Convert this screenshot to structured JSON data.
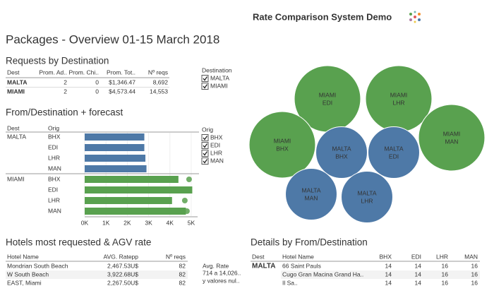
{
  "header": {
    "app_title": "Rate Comparison System Demo",
    "title": "Packages - Overview 01-15 March 2018"
  },
  "requests": {
    "title": "Requests by Destination",
    "columns": [
      "Dest",
      "Prom. Ad..",
      "Prom. Chi..",
      "Prom. Tot..",
      "Nº reqs"
    ],
    "rows": [
      [
        "MALTA",
        "2",
        "0",
        "$1,346.47",
        "8,692"
      ],
      [
        "MIAMI",
        "2",
        "0",
        "$4,573.44",
        "14,553"
      ]
    ]
  },
  "destination_filter": {
    "title": "Destination",
    "options": [
      "MALTA",
      "MIAMI"
    ]
  },
  "forecast": {
    "type": "bar",
    "title": "From/Destination + forecast",
    "columns": [
      "Dest",
      "Orig"
    ],
    "groups": [
      {
        "name": "MALTA",
        "color": "#4e79a7",
        "categories": [
          "BHX",
          "EDI",
          "LHR",
          "MAN"
        ],
        "values": [
          2800,
          2800,
          2850,
          2900
        ],
        "forecast": [
          null,
          null,
          null,
          null
        ]
      },
      {
        "name": "MIAMI",
        "color": "#59a14f",
        "categories": [
          "BHX",
          "EDI",
          "LHR",
          "MAN"
        ],
        "values": [
          4400,
          5050,
          4100,
          4750
        ],
        "forecast": [
          4900,
          null,
          4700,
          4800
        ]
      }
    ],
    "xlim": [
      0,
      5300
    ],
    "xticks": [
      {
        "value": 0,
        "label": "0K"
      },
      {
        "value": 1000,
        "label": "1K"
      },
      {
        "value": 2000,
        "label": "2K"
      },
      {
        "value": 3000,
        "label": "3K"
      },
      {
        "value": 4000,
        "label": "4K"
      },
      {
        "value": 5000,
        "label": "5K"
      }
    ]
  },
  "orig_filter": {
    "title": "Orig",
    "options": [
      "BHX",
      "EDI",
      "LHR",
      "MAN"
    ]
  },
  "bubbles": {
    "type": "bubble",
    "items": [
      {
        "dest": "MIAMI",
        "orig": "EDI",
        "size": 3600,
        "color": "#59a14f"
      },
      {
        "dest": "MIAMI",
        "orig": "LHR",
        "size": 3600,
        "color": "#59a14f"
      },
      {
        "dest": "MIAMI",
        "orig": "BHX",
        "size": 3600,
        "color": "#59a14f"
      },
      {
        "dest": "MIAMI",
        "orig": "MAN",
        "size": 3600,
        "color": "#59a14f"
      },
      {
        "dest": "MALTA",
        "orig": "BHX",
        "size": 2170,
        "color": "#4e79a7"
      },
      {
        "dest": "MALTA",
        "orig": "EDI",
        "size": 2170,
        "color": "#4e79a7"
      },
      {
        "dest": "MALTA",
        "orig": "MAN",
        "size": 2170,
        "color": "#4e79a7"
      },
      {
        "dest": "MALTA",
        "orig": "LHR",
        "size": 2170,
        "color": "#4e79a7"
      }
    ]
  },
  "hotels": {
    "title": "Hotels most requested & AGV rate",
    "columns": [
      "Hotel Name",
      "AVG. Ratepp",
      "Nº reqs"
    ],
    "rows": [
      [
        "Mondrian South Beach",
        "2,467.53U$",
        "82"
      ],
      [
        "W South Beach",
        "3,922.68U$",
        "82"
      ],
      [
        "EAST, Miami",
        "2,267.50U$",
        "82"
      ]
    ]
  },
  "avg_rate_legend": {
    "title": "Avg. Rate",
    "lines": [
      "714 a 14,026..",
      "y valores nul.."
    ]
  },
  "details": {
    "title": "Details by From/Destination",
    "columns": [
      "Dest",
      "Hotel Name",
      "BHX",
      "EDI",
      "LHR",
      "MAN"
    ],
    "dest": "MALTA",
    "rows": [
      [
        "66 Saint Pauls",
        "14",
        "14",
        "16",
        "16"
      ],
      [
        "Cugo Gran Macina Grand Ha..",
        "14",
        "14",
        "16",
        "16"
      ],
      [
        "Il Sa..",
        "14",
        "14",
        "16",
        "16"
      ]
    ]
  }
}
